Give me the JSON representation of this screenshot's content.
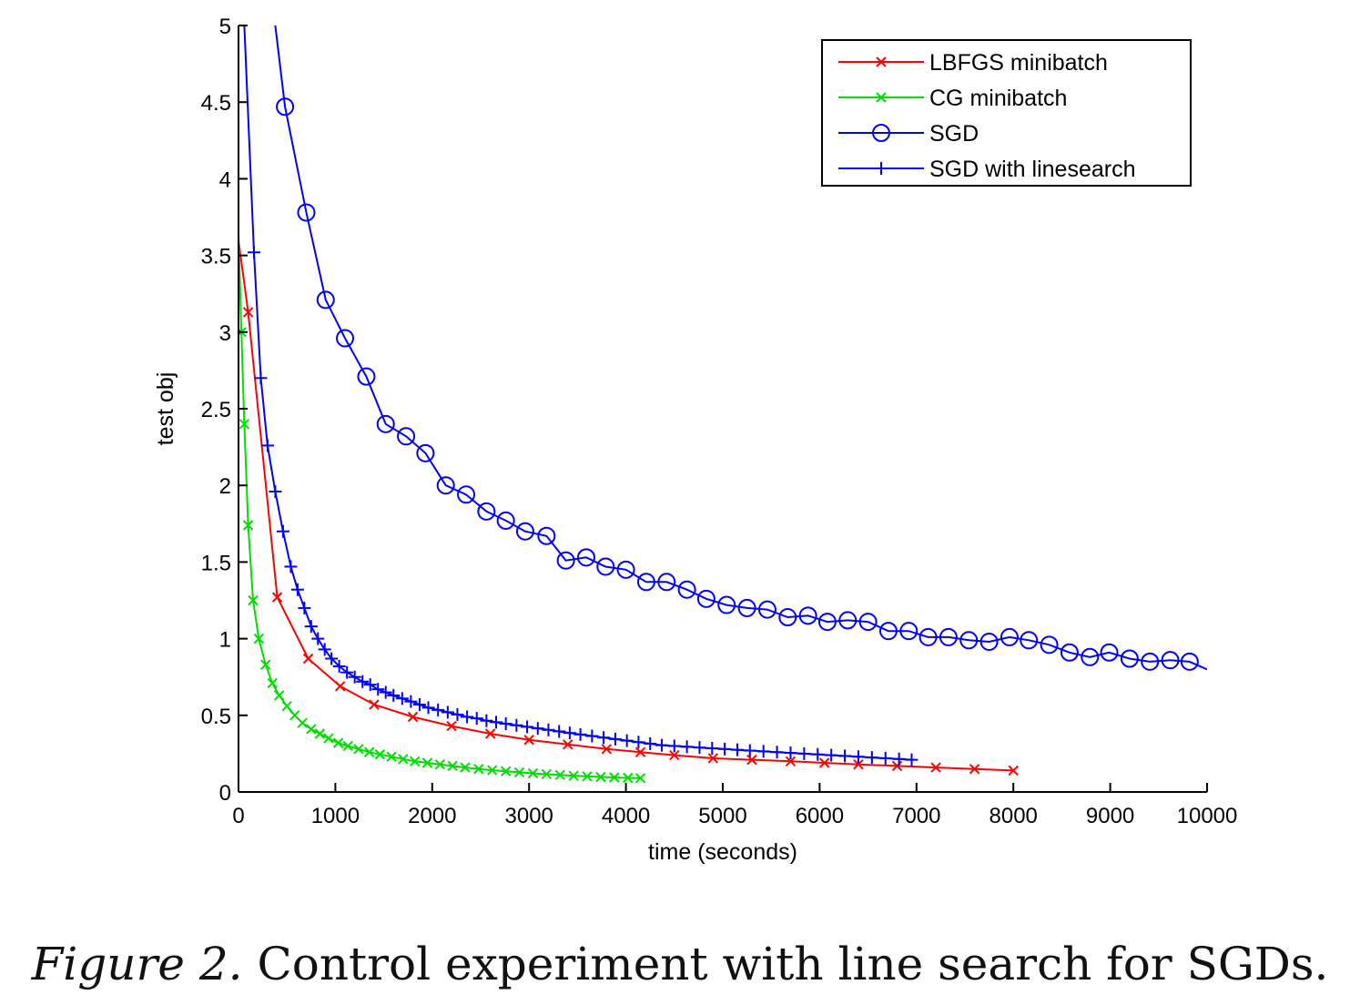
{
  "figure": {
    "label": "Figure 2.",
    "text": "Control experiment with line search for SGDs."
  },
  "chart_data": {
    "type": "line",
    "title": "",
    "xlabel": "time (seconds)",
    "ylabel": "test obj",
    "xlim": [
      0,
      10000
    ],
    "ylim": [
      0,
      5
    ],
    "xticks": [
      "0",
      "1000",
      "2000",
      "3000",
      "4000",
      "5000",
      "6000",
      "7000",
      "8000",
      "9000",
      "10000"
    ],
    "yticks": [
      "0",
      "0.5",
      "1",
      "1.5",
      "2",
      "2.5",
      "3",
      "3.5",
      "4",
      "4.5",
      "5"
    ],
    "grid": false,
    "legend_position": "top-right",
    "series": [
      {
        "name": "LBFGS minibatch",
        "color": "#ff0000",
        "marker": "x",
        "x": [
          0,
          100,
          400,
          720,
          1050,
          1400,
          1800,
          2200,
          2600,
          3000,
          3400,
          3800,
          4150,
          4500,
          4900,
          5300,
          5700,
          6050,
          6400,
          6800,
          7200,
          7600,
          8000
        ],
        "y": [
          3.6,
          3.13,
          1.27,
          0.87,
          0.69,
          0.57,
          0.49,
          0.43,
          0.38,
          0.34,
          0.31,
          0.28,
          0.26,
          0.24,
          0.22,
          0.21,
          0.2,
          0.19,
          0.18,
          0.17,
          0.16,
          0.15,
          0.14
        ]
      },
      {
        "name": "CG minibatch",
        "color": "#00dd00",
        "marker": "x",
        "x": [
          0,
          30,
          60,
          100,
          150,
          210,
          280,
          350,
          420,
          500,
          580,
          660,
          750,
          840,
          930,
          1030,
          1130,
          1240,
          1350,
          1460,
          1580,
          1700,
          1820,
          1950,
          2080,
          2210,
          2340,
          2480,
          2620,
          2760,
          2900,
          3040,
          3180,
          3320,
          3460,
          3600,
          3740,
          3880,
          4020,
          4150
        ],
        "y": [
          3.65,
          3.0,
          2.4,
          1.74,
          1.25,
          1.0,
          0.83,
          0.71,
          0.63,
          0.56,
          0.5,
          0.45,
          0.41,
          0.38,
          0.35,
          0.32,
          0.3,
          0.28,
          0.26,
          0.245,
          0.23,
          0.215,
          0.2,
          0.19,
          0.18,
          0.17,
          0.16,
          0.15,
          0.142,
          0.135,
          0.128,
          0.122,
          0.116,
          0.111,
          0.106,
          0.102,
          0.098,
          0.095,
          0.092,
          0.09
        ]
      },
      {
        "name": "SGD",
        "color": "#0000ff",
        "marker": "o",
        "x": [
          380,
          480,
          700,
          900,
          1100,
          1320,
          1520,
          1730,
          1930,
          2140,
          2350,
          2560,
          2760,
          2960,
          3180,
          3380,
          3590,
          3790,
          4000,
          4210,
          4420,
          4630,
          4830,
          5040,
          5250,
          5460,
          5670,
          5880,
          6080,
          6290,
          6500,
          6710,
          6920,
          7120,
          7330,
          7540,
          7750,
          7960,
          8160,
          8370,
          8580,
          8790,
          8990,
          9200,
          9410,
          9620,
          9820,
          10000
        ],
        "y": [
          5.0,
          4.47,
          3.78,
          3.21,
          2.96,
          2.71,
          2.4,
          2.32,
          2.21,
          2.0,
          1.94,
          1.83,
          1.77,
          1.7,
          1.67,
          1.51,
          1.53,
          1.47,
          1.45,
          1.37,
          1.37,
          1.32,
          1.26,
          1.22,
          1.2,
          1.19,
          1.14,
          1.15,
          1.11,
          1.12,
          1.11,
          1.05,
          1.05,
          1.01,
          1.01,
          0.99,
          0.98,
          1.01,
          0.99,
          0.96,
          0.91,
          0.88,
          0.91,
          0.87,
          0.85,
          0.86,
          0.85,
          0.8
        ]
      },
      {
        "name": "SGD with linesearch",
        "color": "#0000ff",
        "marker": "+",
        "x": [
          60,
          160,
          230,
          300,
          380,
          460,
          540,
          610,
          680,
          750,
          820,
          890,
          960,
          1040,
          1120,
          1200,
          1280,
          1360,
          1440,
          1520,
          1600,
          1690,
          1780,
          1870,
          1960,
          2060,
          2160,
          2260,
          2360,
          2460,
          2560,
          2660,
          2760,
          2870,
          2980,
          3090,
          3200,
          3310,
          3420,
          3530,
          3650,
          3770,
          3890,
          4010,
          4130,
          4250,
          4370,
          4500,
          4630,
          4760,
          4890,
          5020,
          5150,
          5280,
          5420,
          5560,
          5700,
          5840,
          5980,
          6120,
          6260,
          6400,
          6540,
          6680,
          6820,
          6950
        ],
        "y": [
          5.0,
          3.52,
          2.7,
          2.26,
          1.96,
          1.7,
          1.47,
          1.32,
          1.2,
          1.08,
          1.0,
          0.93,
          0.87,
          0.82,
          0.78,
          0.75,
          0.72,
          0.7,
          0.67,
          0.65,
          0.63,
          0.61,
          0.59,
          0.57,
          0.55,
          0.535,
          0.52,
          0.505,
          0.49,
          0.48,
          0.465,
          0.455,
          0.445,
          0.435,
          0.425,
          0.415,
          0.405,
          0.395,
          0.385,
          0.375,
          0.365,
          0.355,
          0.345,
          0.335,
          0.325,
          0.315,
          0.305,
          0.3,
          0.295,
          0.29,
          0.285,
          0.28,
          0.275,
          0.27,
          0.265,
          0.26,
          0.255,
          0.25,
          0.245,
          0.24,
          0.235,
          0.23,
          0.225,
          0.22,
          0.215,
          0.21
        ]
      }
    ]
  }
}
